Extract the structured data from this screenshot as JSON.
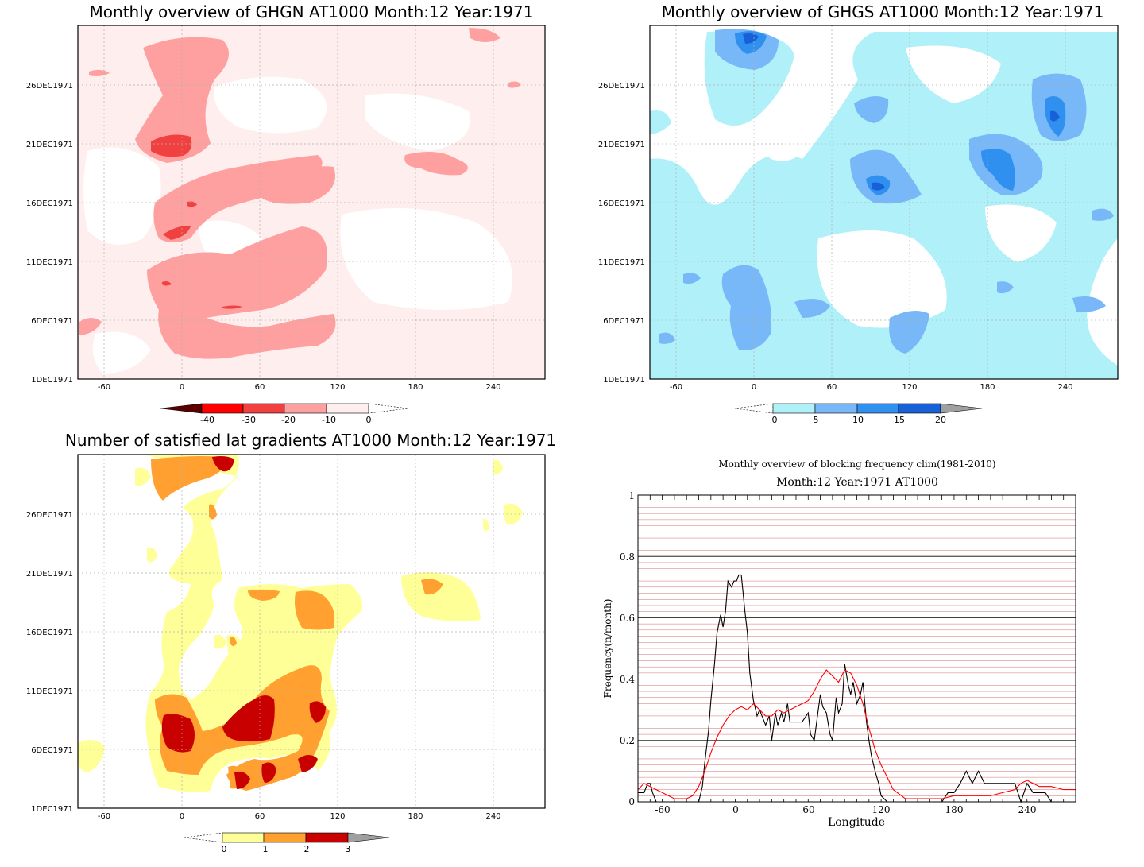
{
  "panels": [
    {
      "title": "Monthly overview of GHGN AT1000 Month:12 Year:1971",
      "y_ticks": [
        "1DEC1971",
        "6DEC1971",
        "11DEC1971",
        "16DEC1971",
        "21DEC1971",
        "26DEC1971"
      ],
      "x_ticks": [
        "-60",
        "0",
        "60",
        "120",
        "180",
        "240"
      ],
      "colorbar": {
        "labels": [
          "-40",
          "-30",
          "-20",
          "-10",
          "0"
        ],
        "colors": [
          "#5a0000",
          "#ff0000",
          "#f04040",
          "#ffa0a0",
          "#ffeeee"
        ]
      },
      "colors": {
        "background": "#ffeeee",
        "light": "#ffa0a0",
        "dark": "#f04040"
      }
    },
    {
      "title": "Monthly overview of GHGS AT1000 Month:12 Year:1971",
      "y_ticks": [
        "1DEC1971",
        "6DEC1971",
        "11DEC1971",
        "16DEC1971",
        "21DEC1971",
        "26DEC1971"
      ],
      "x_ticks": [
        "-60",
        "0",
        "60",
        "120",
        "180",
        "240"
      ],
      "colorbar": {
        "labels": [
          "0",
          "5",
          "10",
          "15",
          "20"
        ],
        "colors": [
          "#b0f0f8",
          "#78b8f8",
          "#3090f0",
          "#1860d8",
          "#a0a0a0"
        ]
      },
      "colors": {
        "light": "#b0f0f8",
        "mid": "#78b8f8",
        "dark": "#3090f0",
        "darkest": "#1860d8"
      }
    },
    {
      "title": "Number of satisfied lat gradients AT1000 Month:12 Year:1971",
      "y_ticks": [
        "1DEC1971",
        "6DEC1971",
        "11DEC1971",
        "16DEC1971",
        "21DEC1971",
        "26DEC1971"
      ],
      "x_ticks": [
        "-60",
        "0",
        "60",
        "120",
        "180",
        "240"
      ],
      "colorbar": {
        "labels": [
          "0",
          "1",
          "2",
          "3"
        ],
        "colors": [
          "#ffff98",
          "#ffa030",
          "#c80000",
          "#a0a0a0"
        ]
      },
      "colors": {
        "c1": "#ffff98",
        "c2": "#ffa030",
        "c3": "#c80000"
      }
    }
  ],
  "chart_data": {
    "type": "line",
    "title": "Monthly overview of blocking frequency clim(1981-2010)",
    "subtitle": "Month:12 Year:1971  AT1000",
    "xlabel": "Longitude",
    "ylabel": "Frequency(n/month)",
    "xlim": [
      -80,
      280
    ],
    "ylim": [
      0,
      1
    ],
    "x_ticks": [
      "-60",
      "0",
      "60",
      "120",
      "180",
      "240"
    ],
    "y_ticks": [
      "0",
      "0.2",
      "0.4",
      "0.6",
      "0.8",
      "1"
    ],
    "grid": true,
    "series": [
      {
        "color": "#000000",
        "x": [
          -80,
          -75,
          -72,
          -70,
          -68,
          -65,
          -60,
          -55,
          -50,
          -45,
          -40,
          -35,
          -30,
          -27,
          -25,
          -22,
          -20,
          -17,
          -15,
          -12,
          -10,
          -8,
          -6,
          -3,
          -1,
          1,
          3,
          5,
          8,
          10,
          12,
          15,
          18,
          20,
          25,
          28,
          30,
          33,
          35,
          38,
          40,
          43,
          45,
          48,
          50,
          55,
          60,
          62,
          65,
          68,
          70,
          72,
          75,
          78,
          80,
          83,
          85,
          88,
          90,
          93,
          95,
          97,
          100,
          103,
          105,
          108,
          110,
          112,
          115,
          118,
          120,
          125,
          130,
          140,
          150,
          160,
          170,
          175,
          180,
          185,
          190,
          195,
          200,
          205,
          210,
          220,
          230,
          235,
          240,
          245,
          250,
          255,
          260,
          265
        ],
        "y": [
          0.03,
          0.03,
          0.06,
          0.06,
          0.03,
          0.0,
          0.0,
          0.0,
          0.0,
          0.0,
          0.0,
          0.0,
          0.0,
          0.05,
          0.13,
          0.23,
          0.33,
          0.45,
          0.55,
          0.61,
          0.57,
          0.62,
          0.72,
          0.7,
          0.72,
          0.72,
          0.74,
          0.74,
          0.62,
          0.55,
          0.42,
          0.33,
          0.28,
          0.3,
          0.25,
          0.28,
          0.2,
          0.29,
          0.25,
          0.29,
          0.26,
          0.32,
          0.26,
          0.26,
          0.26,
          0.26,
          0.29,
          0.22,
          0.2,
          0.29,
          0.35,
          0.31,
          0.29,
          0.22,
          0.2,
          0.34,
          0.29,
          0.32,
          0.45,
          0.38,
          0.35,
          0.39,
          0.32,
          0.35,
          0.39,
          0.26,
          0.2,
          0.15,
          0.1,
          0.06,
          0.02,
          0.0,
          0.0,
          0.0,
          0.0,
          0.0,
          0.0,
          0.03,
          0.03,
          0.06,
          0.1,
          0.06,
          0.1,
          0.06,
          0.06,
          0.06,
          0.06,
          0.0,
          0.06,
          0.03,
          0.03,
          0.03,
          0.0,
          0.0
        ]
      },
      {
        "color": "#ff0000",
        "x": [
          -80,
          -75,
          -70,
          -65,
          -60,
          -55,
          -50,
          -45,
          -40,
          -35,
          -30,
          -25,
          -20,
          -15,
          -10,
          -5,
          0,
          5,
          10,
          15,
          20,
          25,
          30,
          35,
          40,
          45,
          50,
          55,
          60,
          65,
          70,
          75,
          80,
          85,
          90,
          95,
          100,
          105,
          110,
          115,
          120,
          125,
          130,
          140,
          150,
          160,
          170,
          180,
          190,
          200,
          210,
          220,
          230,
          235,
          240,
          245,
          250,
          260,
          270,
          280
        ],
        "y": [
          0.04,
          0.06,
          0.05,
          0.04,
          0.03,
          0.02,
          0.01,
          0.01,
          0.01,
          0.02,
          0.05,
          0.1,
          0.16,
          0.21,
          0.25,
          0.28,
          0.3,
          0.31,
          0.3,
          0.32,
          0.3,
          0.28,
          0.28,
          0.3,
          0.29,
          0.3,
          0.31,
          0.32,
          0.33,
          0.36,
          0.4,
          0.43,
          0.41,
          0.39,
          0.43,
          0.42,
          0.38,
          0.32,
          0.24,
          0.17,
          0.12,
          0.08,
          0.04,
          0.01,
          0.01,
          0.01,
          0.01,
          0.02,
          0.02,
          0.02,
          0.02,
          0.03,
          0.04,
          0.06,
          0.07,
          0.06,
          0.05,
          0.05,
          0.04,
          0.04
        ]
      }
    ]
  }
}
